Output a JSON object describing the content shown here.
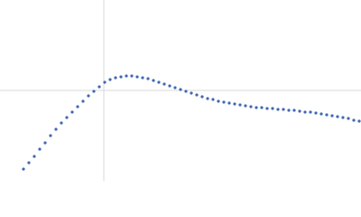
{
  "chart_data": {
    "type": "scatter",
    "x": [
      26,
      32,
      38,
      44,
      50,
      56,
      62,
      68,
      74,
      80,
      86,
      92,
      98,
      104,
      110,
      116,
      122,
      128,
      134,
      140,
      146,
      152,
      158,
      164,
      170,
      176,
      182,
      188,
      194,
      200,
      206,
      212,
      218,
      224,
      230,
      236,
      242,
      248,
      254,
      260,
      266,
      272,
      278,
      284,
      290,
      296,
      302,
      308,
      314,
      320,
      326,
      332,
      338,
      344,
      350,
      356,
      362,
      368,
      374,
      380,
      386,
      392,
      398
    ],
    "series": [
      {
        "color": "#3f67b5",
        "values": [
          13,
          20,
          27,
          35,
          42,
          50,
          57,
          64,
          70,
          76,
          82,
          88,
          94,
          99,
          104,
          109,
          112,
          114,
          115,
          116,
          116,
          115,
          114,
          113,
          111,
          109,
          107,
          105,
          103,
          101,
          99,
          97,
          95,
          93,
          91,
          90,
          88,
          87,
          86,
          85,
          84,
          83,
          82,
          81,
          81,
          80,
          80,
          79,
          79,
          78,
          78,
          77,
          76,
          76,
          75,
          74,
          73,
          72,
          71,
          70,
          69,
          67,
          66
        ]
      }
    ],
    "xlim": [
      0,
      400
    ],
    "ylim": [
      0,
      200
    ],
    "xticks": [
      115
    ],
    "yticks": [
      100
    ],
    "grid": true
  }
}
